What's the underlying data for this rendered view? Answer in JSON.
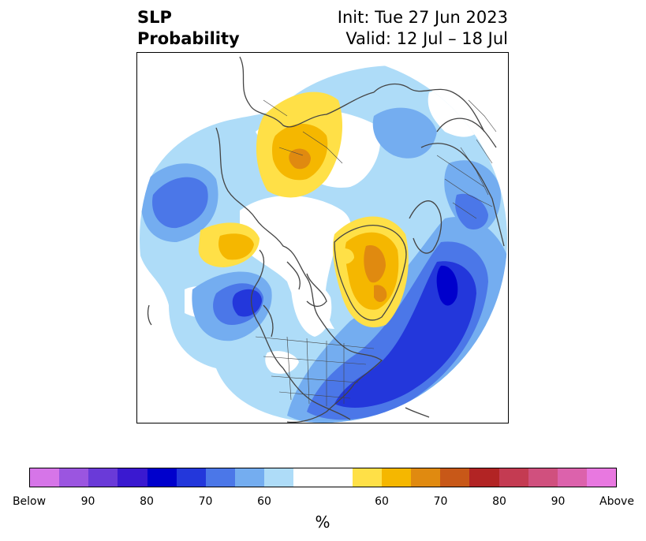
{
  "title": {
    "line1": "SLP",
    "line2": "Probability"
  },
  "init": {
    "line1": "Init: Tue 27 Jun 2023",
    "line2": "Valid: 12 Jul – 18 Jul"
  },
  "colorbar": {
    "unit": "%",
    "colors": [
      "#d675e8",
      "#9b55e0",
      "#6a3ad8",
      "#3a19d0",
      "#0000cc",
      "#2337db",
      "#4b77e8",
      "#74adf0",
      "#aedcf8",
      "#ffffff",
      "#ffffff",
      "#ffe047",
      "#f5b700",
      "#e08a10",
      "#c85818",
      "#b22424",
      "#c43b52",
      "#d0507e",
      "#dc62ac",
      "#e878e0"
    ],
    "ticks": [
      {
        "label": "Below",
        "index": 0
      },
      {
        "label": "90",
        "index": 2
      },
      {
        "label": "80",
        "index": 4
      },
      {
        "label": "70",
        "index": 6
      },
      {
        "label": "60",
        "index": 8
      },
      {
        "label": "60",
        "index": 12
      },
      {
        "label": "70",
        "index": 14
      },
      {
        "label": "80",
        "index": 16
      },
      {
        "label": "90",
        "index": 18
      },
      {
        "label": "Above",
        "index": 20
      }
    ]
  },
  "colors": {
    "below_60": "#aedcf8",
    "below_70": "#74adf0",
    "below_80": "#4b77e8",
    "below_90": "#2337db",
    "below_max": "#0000cc",
    "above_60": "#ffe047",
    "above_70": "#f5b700",
    "above_80": "#e08a10",
    "above_90": "#c85818",
    "coast": "#444444"
  }
}
